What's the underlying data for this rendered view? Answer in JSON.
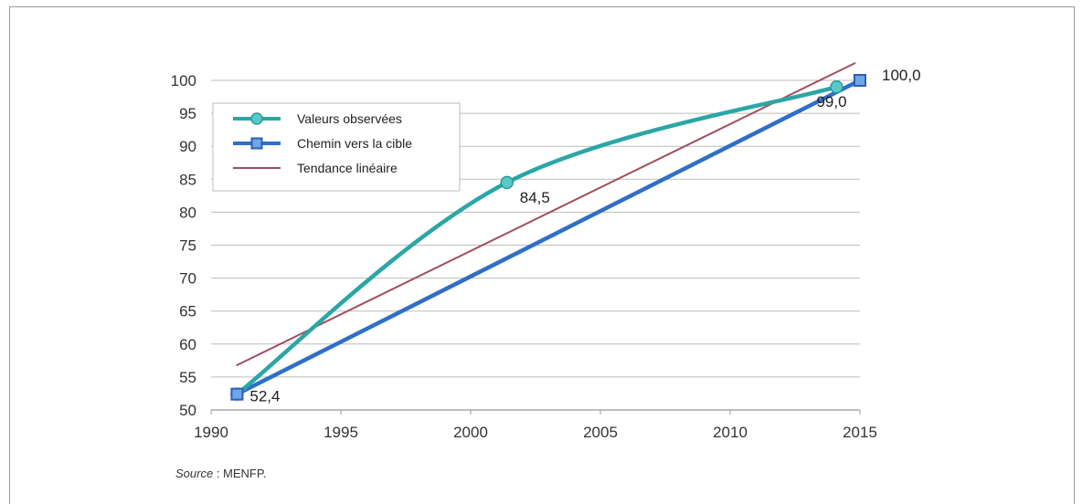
{
  "chart_data": {
    "type": "line",
    "xlim": [
      1990,
      2015
    ],
    "ylim": [
      50,
      100
    ],
    "x_ticks": [
      "1990",
      "1995",
      "2000",
      "2005",
      "2010",
      "2015"
    ],
    "y_ticks": [
      "50",
      "55",
      "60",
      "65",
      "70",
      "75",
      "80",
      "85",
      "90",
      "95",
      "100"
    ],
    "grid": "horizontal",
    "legend_position": "top-left",
    "series": [
      {
        "name": "Valeurs observées",
        "color": "#2ba6a6",
        "marker": "circle",
        "points": [
          [
            1991,
            52.4
          ],
          [
            2001.4,
            84.5
          ],
          [
            2014.1,
            99.0
          ]
        ],
        "labels": [
          {
            "x": 2001.4,
            "y": 84.5,
            "text": "84,5"
          },
          {
            "x": 2014.1,
            "y": 99.0,
            "text": "99,0"
          }
        ]
      },
      {
        "name": "Chemin vers la cible",
        "color": "#2e6fc8",
        "marker": "square",
        "points": [
          [
            1991,
            52.4
          ],
          [
            2015,
            100.0
          ]
        ],
        "labels": [
          {
            "x": 1991,
            "y": 52.4,
            "text": "52,4"
          },
          {
            "x": 2015,
            "y": 100.0,
            "text": "100,0"
          }
        ]
      },
      {
        "name": "Tendance linéaire",
        "color": "#a05060",
        "marker": "none",
        "points": [
          [
            1991,
            56.8
          ],
          [
            2014.8,
            102.6
          ]
        ]
      }
    ]
  },
  "footer": {
    "source_label": "Source",
    "source_value": " : MENFP."
  }
}
